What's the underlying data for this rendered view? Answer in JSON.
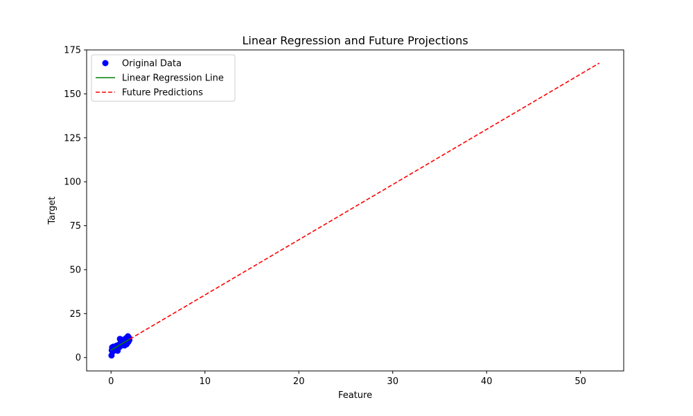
{
  "chart_data": {
    "type": "scatter",
    "title": "Linear Regression and Future Projections",
    "xlabel": "Feature",
    "ylabel": "Target",
    "xlim": [
      -2.6,
      54.6
    ],
    "ylim": [
      -7.6,
      175
    ],
    "xticks": [
      0,
      10,
      20,
      30,
      40,
      50
    ],
    "yticks": [
      0,
      25,
      50,
      75,
      100,
      125,
      150,
      175
    ],
    "legend_position": "upper-left",
    "series": [
      {
        "name": "Original Data",
        "kind": "scatter",
        "color": "#0000ff",
        "points": [
          [
            0.05,
            1.2
          ],
          [
            0.08,
            4.1
          ],
          [
            0.12,
            5.8
          ],
          [
            0.2,
            3.5
          ],
          [
            0.25,
            6.2
          ],
          [
            0.35,
            5.0
          ],
          [
            0.45,
            4.3
          ],
          [
            0.55,
            5.6
          ],
          [
            0.65,
            6.5
          ],
          [
            0.7,
            3.9
          ],
          [
            0.8,
            7.2
          ],
          [
            0.9,
            6.0
          ],
          [
            0.95,
            10.6
          ],
          [
            1.0,
            8.1
          ],
          [
            1.1,
            6.8
          ],
          [
            1.15,
            9.2
          ],
          [
            1.25,
            7.5
          ],
          [
            1.3,
            10.1
          ],
          [
            1.4,
            8.5
          ],
          [
            1.45,
            6.9
          ],
          [
            1.55,
            9.7
          ],
          [
            1.6,
            11.0
          ],
          [
            1.7,
            8.0
          ],
          [
            1.75,
            10.4
          ],
          [
            1.8,
            12.1
          ],
          [
            1.85,
            9.0
          ],
          [
            1.9,
            11.3
          ],
          [
            1.95,
            10.0
          ],
          [
            0.3,
            5.4
          ],
          [
            0.6,
            6.8
          ],
          [
            1.05,
            7.3
          ],
          [
            1.5,
            9.1
          ],
          [
            1.2,
            8.8
          ],
          [
            0.15,
            4.6
          ],
          [
            1.65,
            7.6
          ]
        ]
      },
      {
        "name": "Linear Regression Line",
        "kind": "line",
        "color": "#008000",
        "dash": "solid",
        "points": [
          [
            0.0,
            4.2
          ],
          [
            2.0,
            10.5
          ]
        ]
      },
      {
        "name": "Future Predictions",
        "kind": "line",
        "color": "#ff0000",
        "dash": "dashed",
        "points": [
          [
            2.0,
            10.5
          ],
          [
            52.0,
            167.5
          ]
        ]
      }
    ]
  }
}
